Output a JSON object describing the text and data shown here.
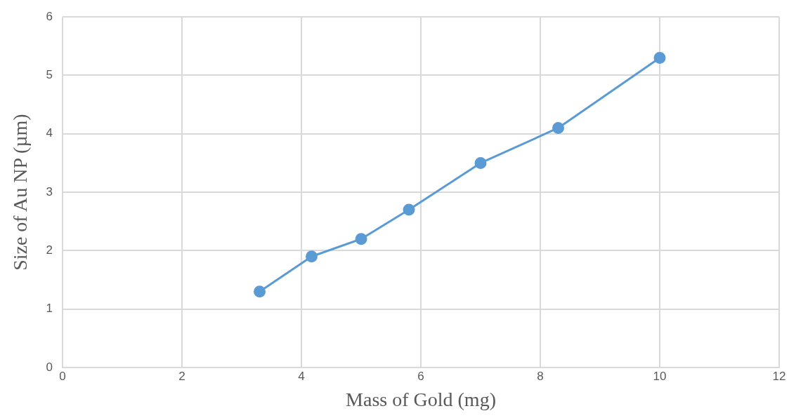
{
  "chart_data": {
    "type": "line",
    "xlabel": "Mass of Gold (mg)",
    "ylabel": "Size of Au NP (µm)",
    "x": [
      3.3,
      4.17,
      5,
      5.8,
      7,
      8.3,
      10
    ],
    "series": [
      {
        "color": "#5b9bd5",
        "values": [
          1.3,
          1.9,
          2.2,
          2.7,
          3.5,
          4.1,
          5.3
        ]
      }
    ],
    "xlim": [
      0,
      12
    ],
    "xticks": [
      0,
      2,
      4,
      6,
      8,
      10,
      12
    ],
    "ylim": [
      0,
      6
    ],
    "yticks": [
      0,
      1,
      2,
      3,
      4,
      5,
      6
    ],
    "grid": true,
    "marker": "circle",
    "line_style": "solid",
    "legend": false
  }
}
